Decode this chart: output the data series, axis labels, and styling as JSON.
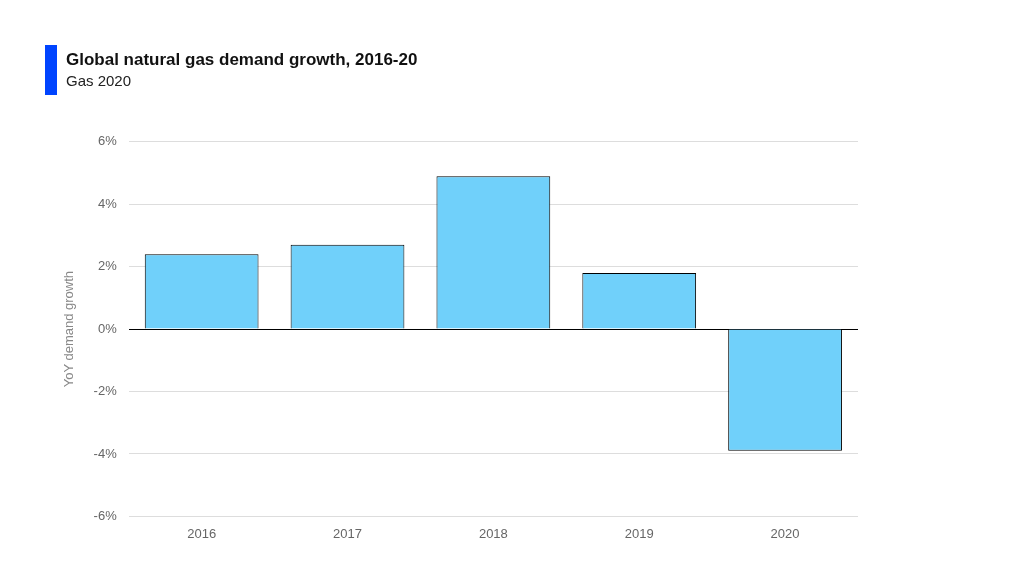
{
  "chart_data": {
    "type": "bar",
    "title": "Global natural gas demand growth, 2016-20",
    "subtitle": "Gas 2020",
    "ylabel": "YoY demand growth",
    "categories": [
      "2016",
      "2017",
      "2018",
      "2019",
      "2020"
    ],
    "values": [
      2.4,
      2.7,
      4.9,
      1.8,
      -3.9
    ],
    "color": "#70d0fa",
    "ylim": [
      -6,
      6
    ],
    "yticks": [
      {
        "value": -6,
        "label": "-6%"
      },
      {
        "value": -4,
        "label": "-4%"
      },
      {
        "value": -2,
        "label": "-2%"
      },
      {
        "value": 0,
        "label": "0%"
      },
      {
        "value": 2,
        "label": "2%"
      },
      {
        "value": 4,
        "label": "4%"
      },
      {
        "value": 6,
        "label": "6%"
      }
    ],
    "grid": "y",
    "legend": false
  }
}
